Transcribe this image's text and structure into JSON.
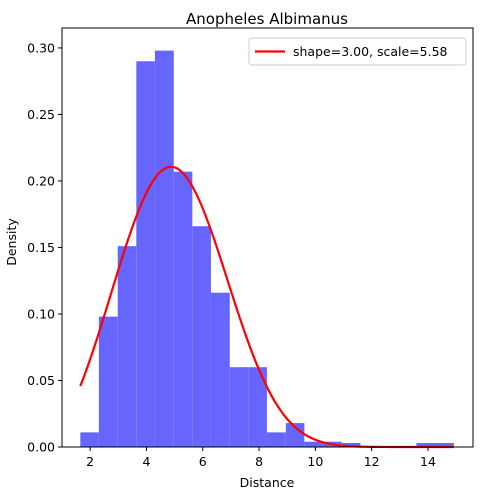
{
  "chart_data": {
    "type": "histogram",
    "title": "Anopheles Albimanus",
    "xlabel": "Distance",
    "ylabel": "Density",
    "xlim": [
      1.0,
      15.6
    ],
    "ylim": [
      0,
      0.315
    ],
    "xticks": [
      2,
      4,
      6,
      8,
      10,
      12,
      14
    ],
    "yticks": [
      0.0,
      0.05,
      0.1,
      0.15,
      0.2,
      0.25,
      0.3
    ],
    "ytick_labels": [
      "0.00",
      "0.05",
      "0.10",
      "0.15",
      "0.20",
      "0.25",
      "0.30"
    ],
    "grid": false,
    "legend_position": "top-right",
    "bar_color": "#6666ff",
    "bins": [
      {
        "x0": 1.65,
        "x1": 2.31,
        "density": 0.011
      },
      {
        "x0": 2.31,
        "x1": 2.98,
        "density": 0.098
      },
      {
        "x0": 2.98,
        "x1": 3.64,
        "density": 0.151
      },
      {
        "x0": 3.64,
        "x1": 4.3,
        "density": 0.29
      },
      {
        "x0": 4.3,
        "x1": 4.97,
        "density": 0.298
      },
      {
        "x0": 4.97,
        "x1": 5.63,
        "density": 0.207
      },
      {
        "x0": 5.63,
        "x1": 6.29,
        "density": 0.166
      },
      {
        "x0": 6.29,
        "x1": 6.96,
        "density": 0.116
      },
      {
        "x0": 6.96,
        "x1": 7.62,
        "density": 0.06
      },
      {
        "x0": 7.62,
        "x1": 8.28,
        "density": 0.06
      },
      {
        "x0": 8.28,
        "x1": 8.95,
        "density": 0.011
      },
      {
        "x0": 8.95,
        "x1": 9.61,
        "density": 0.018
      },
      {
        "x0": 9.61,
        "x1": 10.27,
        "density": 0.004
      },
      {
        "x0": 10.27,
        "x1": 10.94,
        "density": 0.004
      },
      {
        "x0": 10.94,
        "x1": 11.6,
        "density": 0.003
      },
      {
        "x0": 11.6,
        "x1": 12.26,
        "density": 0.0
      },
      {
        "x0": 12.26,
        "x1": 12.93,
        "density": 0.0
      },
      {
        "x0": 12.93,
        "x1": 13.59,
        "density": 0.0
      },
      {
        "x0": 13.59,
        "x1": 14.25,
        "density": 0.003
      },
      {
        "x0": 14.25,
        "x1": 14.92,
        "density": 0.003
      }
    ],
    "series": [
      {
        "name": "shape=3.00, scale=5.58",
        "type": "line",
        "color": "#ff0000",
        "x_range": [
          1.65,
          14.92
        ],
        "shape": 3.0,
        "scale": 5.58
      }
    ]
  }
}
